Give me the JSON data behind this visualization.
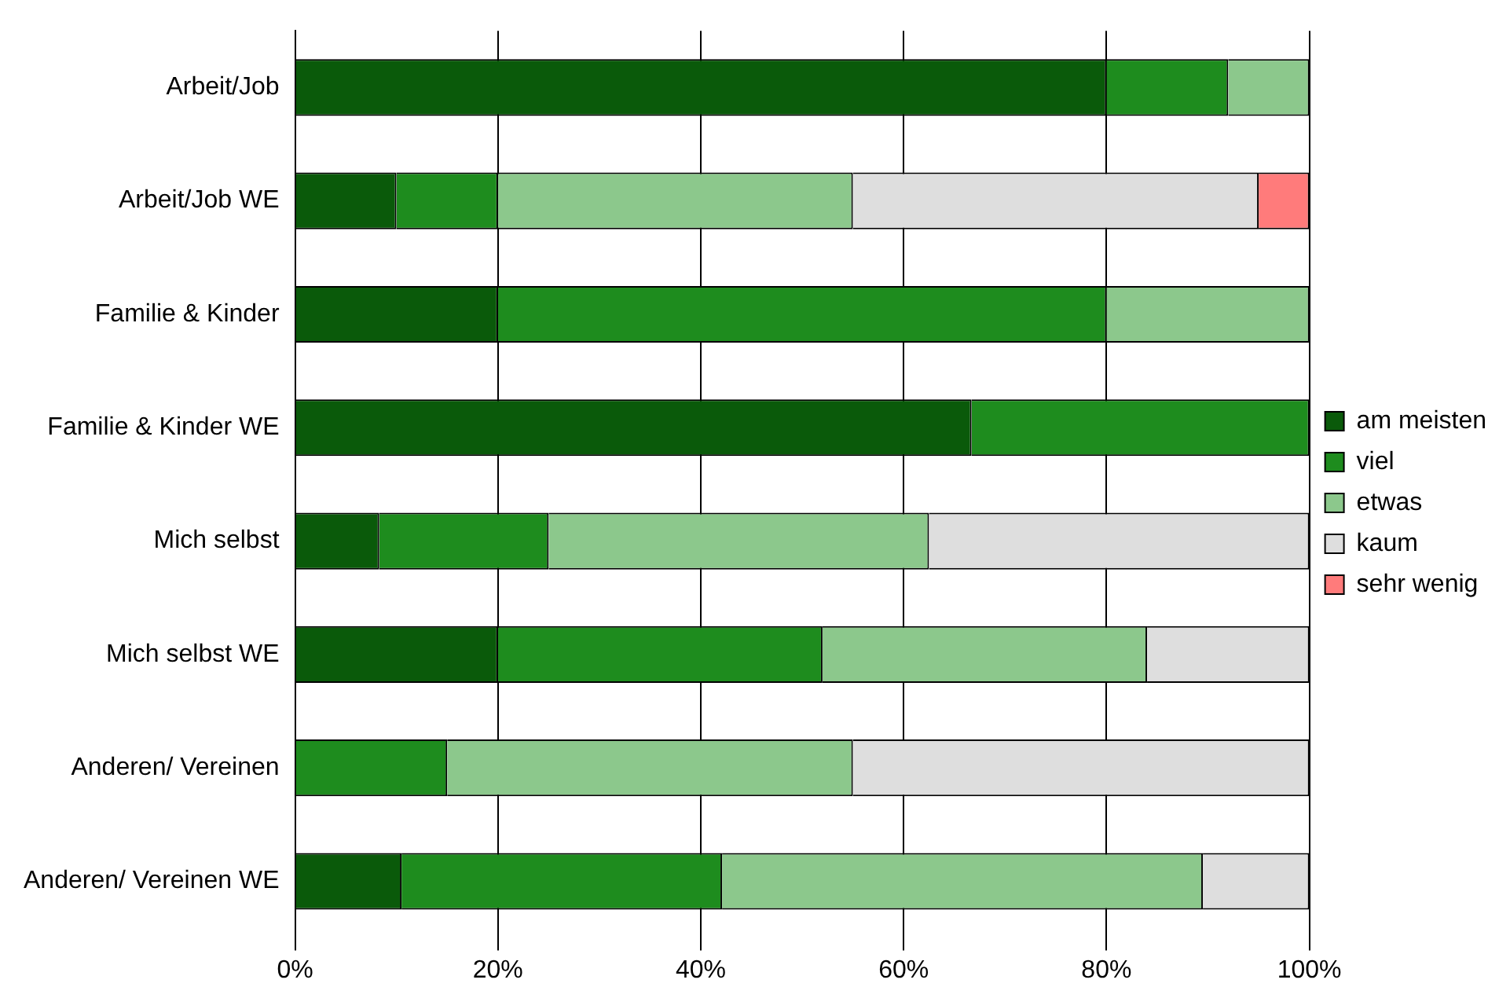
{
  "chart_data": {
    "type": "bar",
    "orientation": "horizontal",
    "stacked": true,
    "categories": [
      "Arbeit/Job",
      "Arbeit/Job WE",
      "Familie & Kinder",
      "Familie & Kinder WE",
      "Mich selbst",
      "Mich selbst WE",
      "Anderen/ Vereinen",
      "Anderen/ Vereinen WE"
    ],
    "series": [
      {
        "name": "am meisten",
        "color": "#0a5a0a",
        "values": [
          80,
          10,
          20,
          66.7,
          8.3,
          20,
          0,
          10.5
        ]
      },
      {
        "name": "viel",
        "color": "#1e8c1e",
        "values": [
          12,
          10,
          60,
          33.3,
          16.7,
          32,
          15,
          31.6
        ]
      },
      {
        "name": "etwas",
        "color": "#8cc88c",
        "values": [
          8,
          35,
          20,
          0,
          37.5,
          32,
          40,
          47.4
        ]
      },
      {
        "name": "kaum",
        "color": "#dedede",
        "values": [
          0,
          40,
          0,
          0,
          37.5,
          16,
          45,
          10.5
        ]
      },
      {
        "name": "sehr wenig",
        "color": "#ff7b7b",
        "values": [
          0,
          5,
          0,
          0,
          0,
          0,
          0,
          0
        ]
      }
    ],
    "xlim": [
      0,
      100
    ],
    "xticks": [
      {
        "value": 0,
        "label": "0%"
      },
      {
        "value": 20,
        "label": "20%"
      },
      {
        "value": 40,
        "label": "40%"
      },
      {
        "value": 60,
        "label": "60%"
      },
      {
        "value": 80,
        "label": "80%"
      },
      {
        "value": 100,
        "label": "100%"
      }
    ],
    "grid": "x",
    "legend": "right"
  }
}
